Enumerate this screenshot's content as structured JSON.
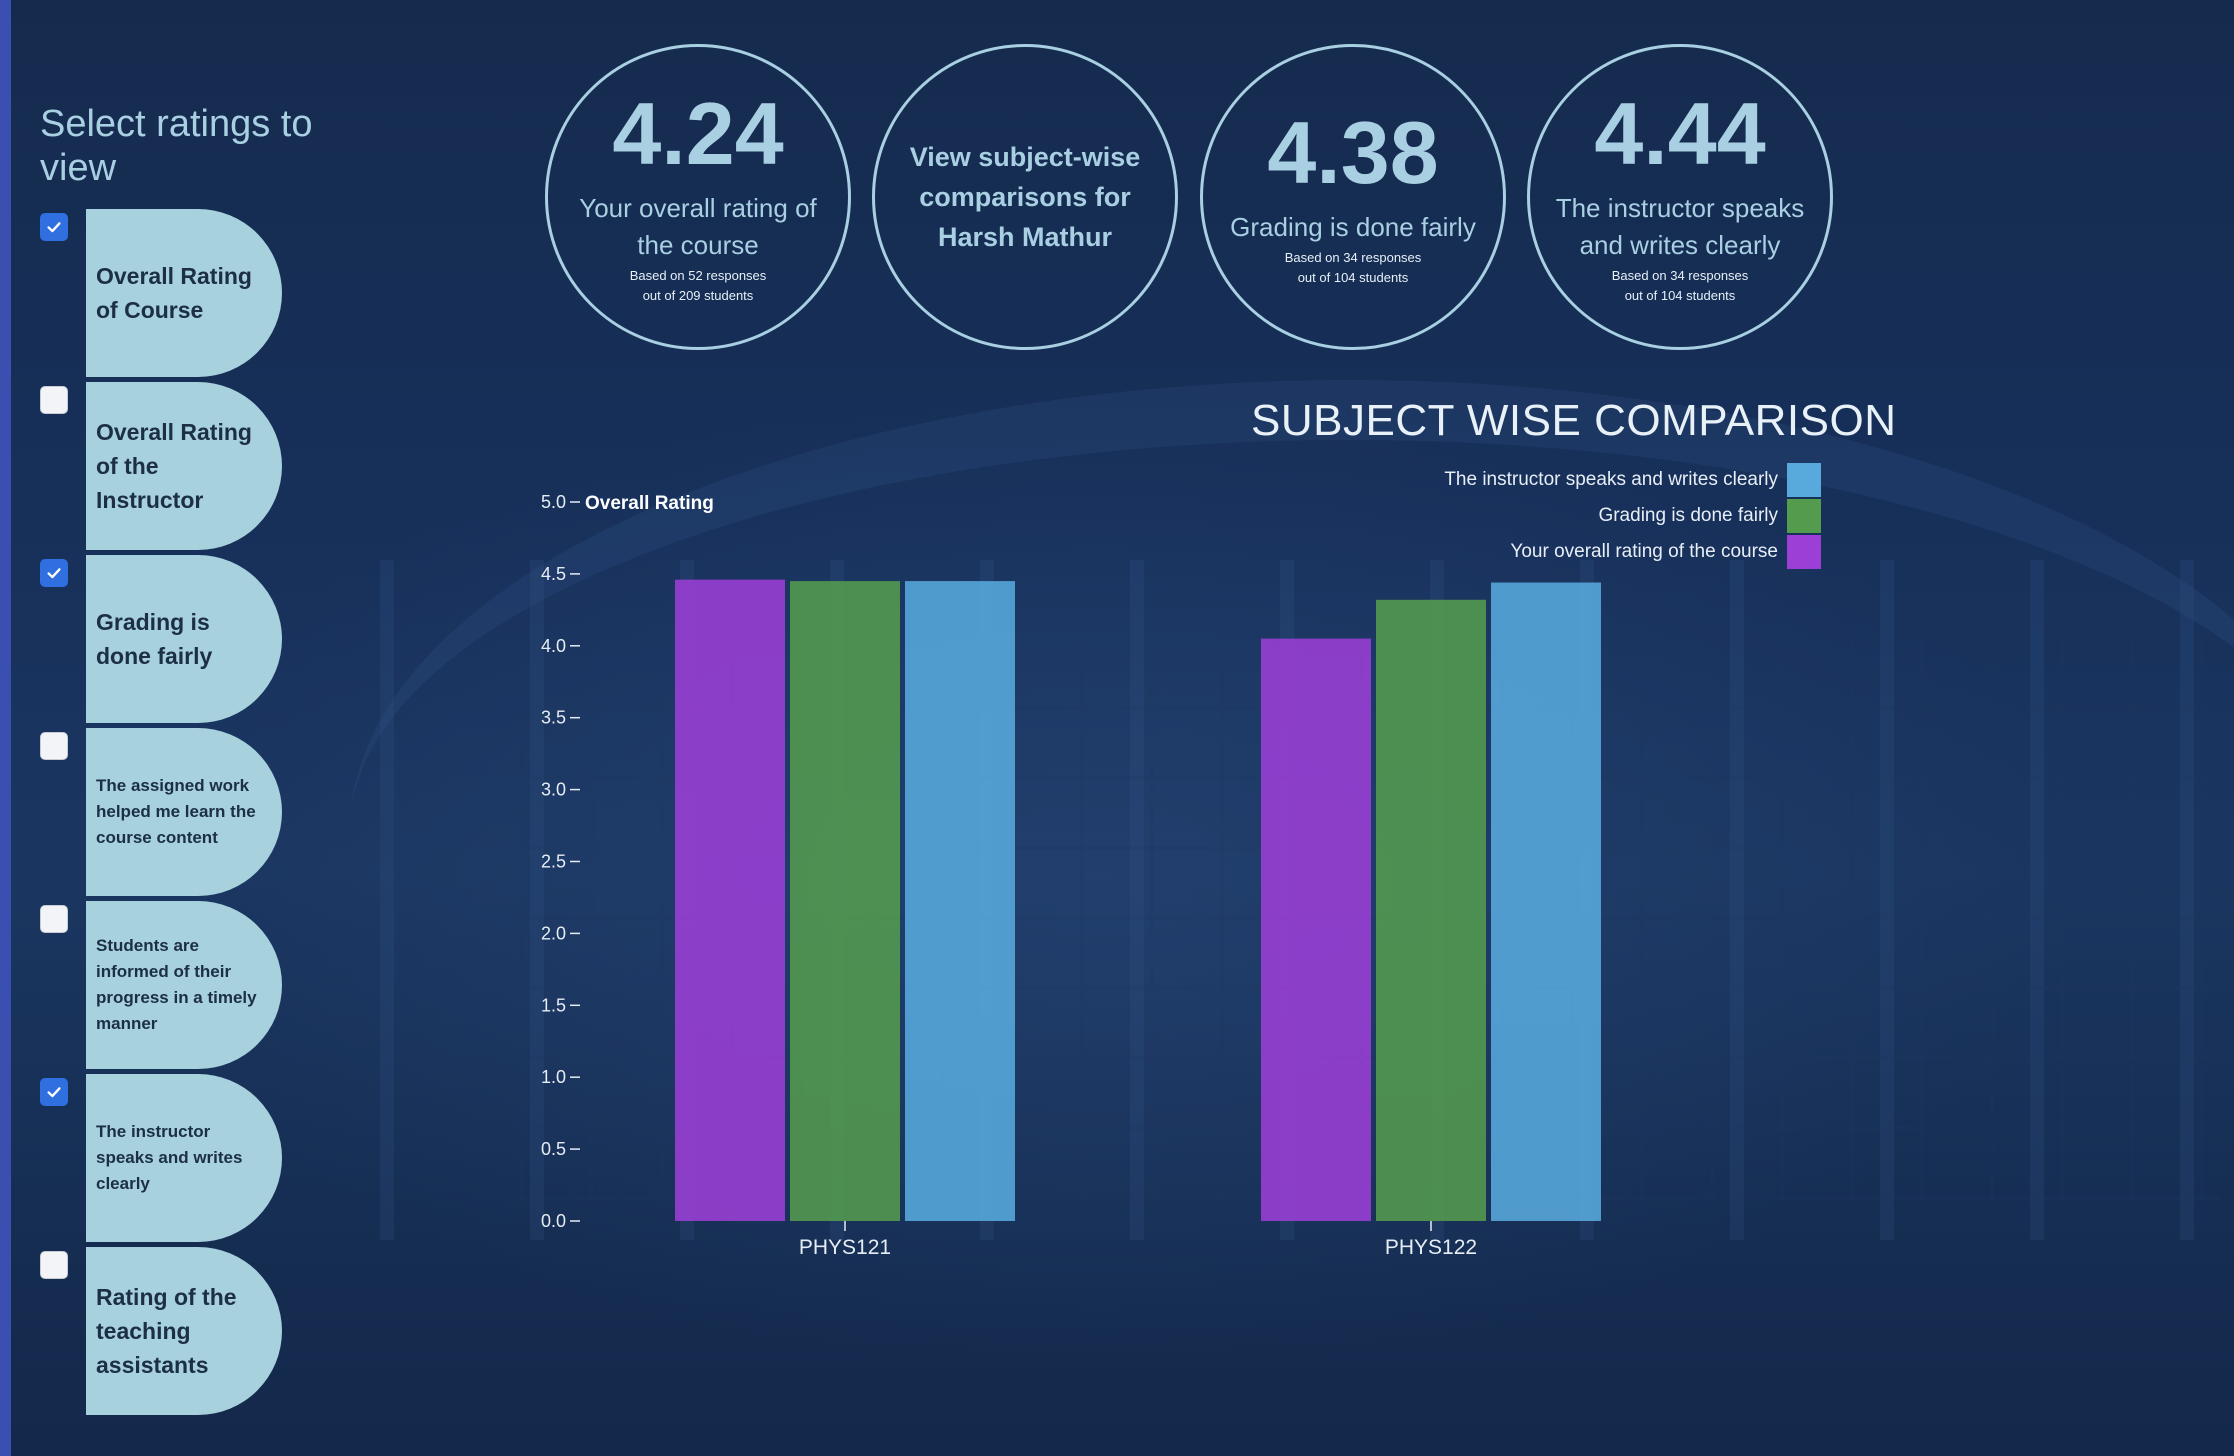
{
  "sidebar": {
    "title": "Select ratings to view",
    "items": [
      {
        "label": "Overall Rating of Course",
        "checked": true,
        "size": "lg"
      },
      {
        "label": "Overall Rating of the Instructor",
        "checked": false,
        "size": "lg"
      },
      {
        "label": "Grading is done fairly",
        "checked": true,
        "size": "lg"
      },
      {
        "label": "The assigned work helped me learn the course content",
        "checked": false,
        "size": "sm"
      },
      {
        "label": "Students are informed of their progress in a timely manner",
        "checked": false,
        "size": "sm"
      },
      {
        "label": "The instructor speaks and writes clearly",
        "checked": true,
        "size": "sm"
      },
      {
        "label": "Rating of the teaching assistants",
        "checked": false,
        "size": "lg"
      }
    ]
  },
  "stats": [
    {
      "value": "4.24",
      "label": "Your overall rating of the course",
      "sub1": "Based on 52 responses",
      "sub2": "out of 209 students"
    },
    {
      "link": "View subject-wise comparisons for Harsh Mathur"
    },
    {
      "value": "4.38",
      "label": "Grading is done fairly",
      "sub1": "Based on 34 responses",
      "sub2": "out of 104 students"
    },
    {
      "value": "4.44",
      "label": "The instructor speaks and writes clearly",
      "sub1": "Based on 34 responses",
      "sub2": "out of 104 students"
    }
  ],
  "chart_data": {
    "type": "bar",
    "title": "SUBJECT WISE COMPARISON",
    "ylabel": "Overall Rating",
    "xlabel": "",
    "ylim": [
      0,
      5
    ],
    "yticks": [
      0.0,
      0.5,
      1.0,
      1.5,
      2.0,
      2.5,
      3.0,
      3.5,
      4.0,
      4.5,
      5.0
    ],
    "categories": [
      "PHYS121",
      "PHYS122"
    ],
    "series": [
      {
        "name": "Your overall rating of the course",
        "color": "#9b3fd6",
        "values": [
          4.46,
          4.05
        ]
      },
      {
        "name": "Grading is done fairly",
        "color": "#549b4e",
        "values": [
          4.45,
          4.32
        ]
      },
      {
        "name": "The instructor speaks and writes clearly",
        "color": "#58aadd",
        "values": [
          4.45,
          4.44
        ]
      }
    ],
    "legend_order": [
      "The instructor speaks and writes clearly",
      "Grading is done fairly",
      "Your overall rating of the course"
    ],
    "legend_position": "top-right",
    "grid": false
  }
}
